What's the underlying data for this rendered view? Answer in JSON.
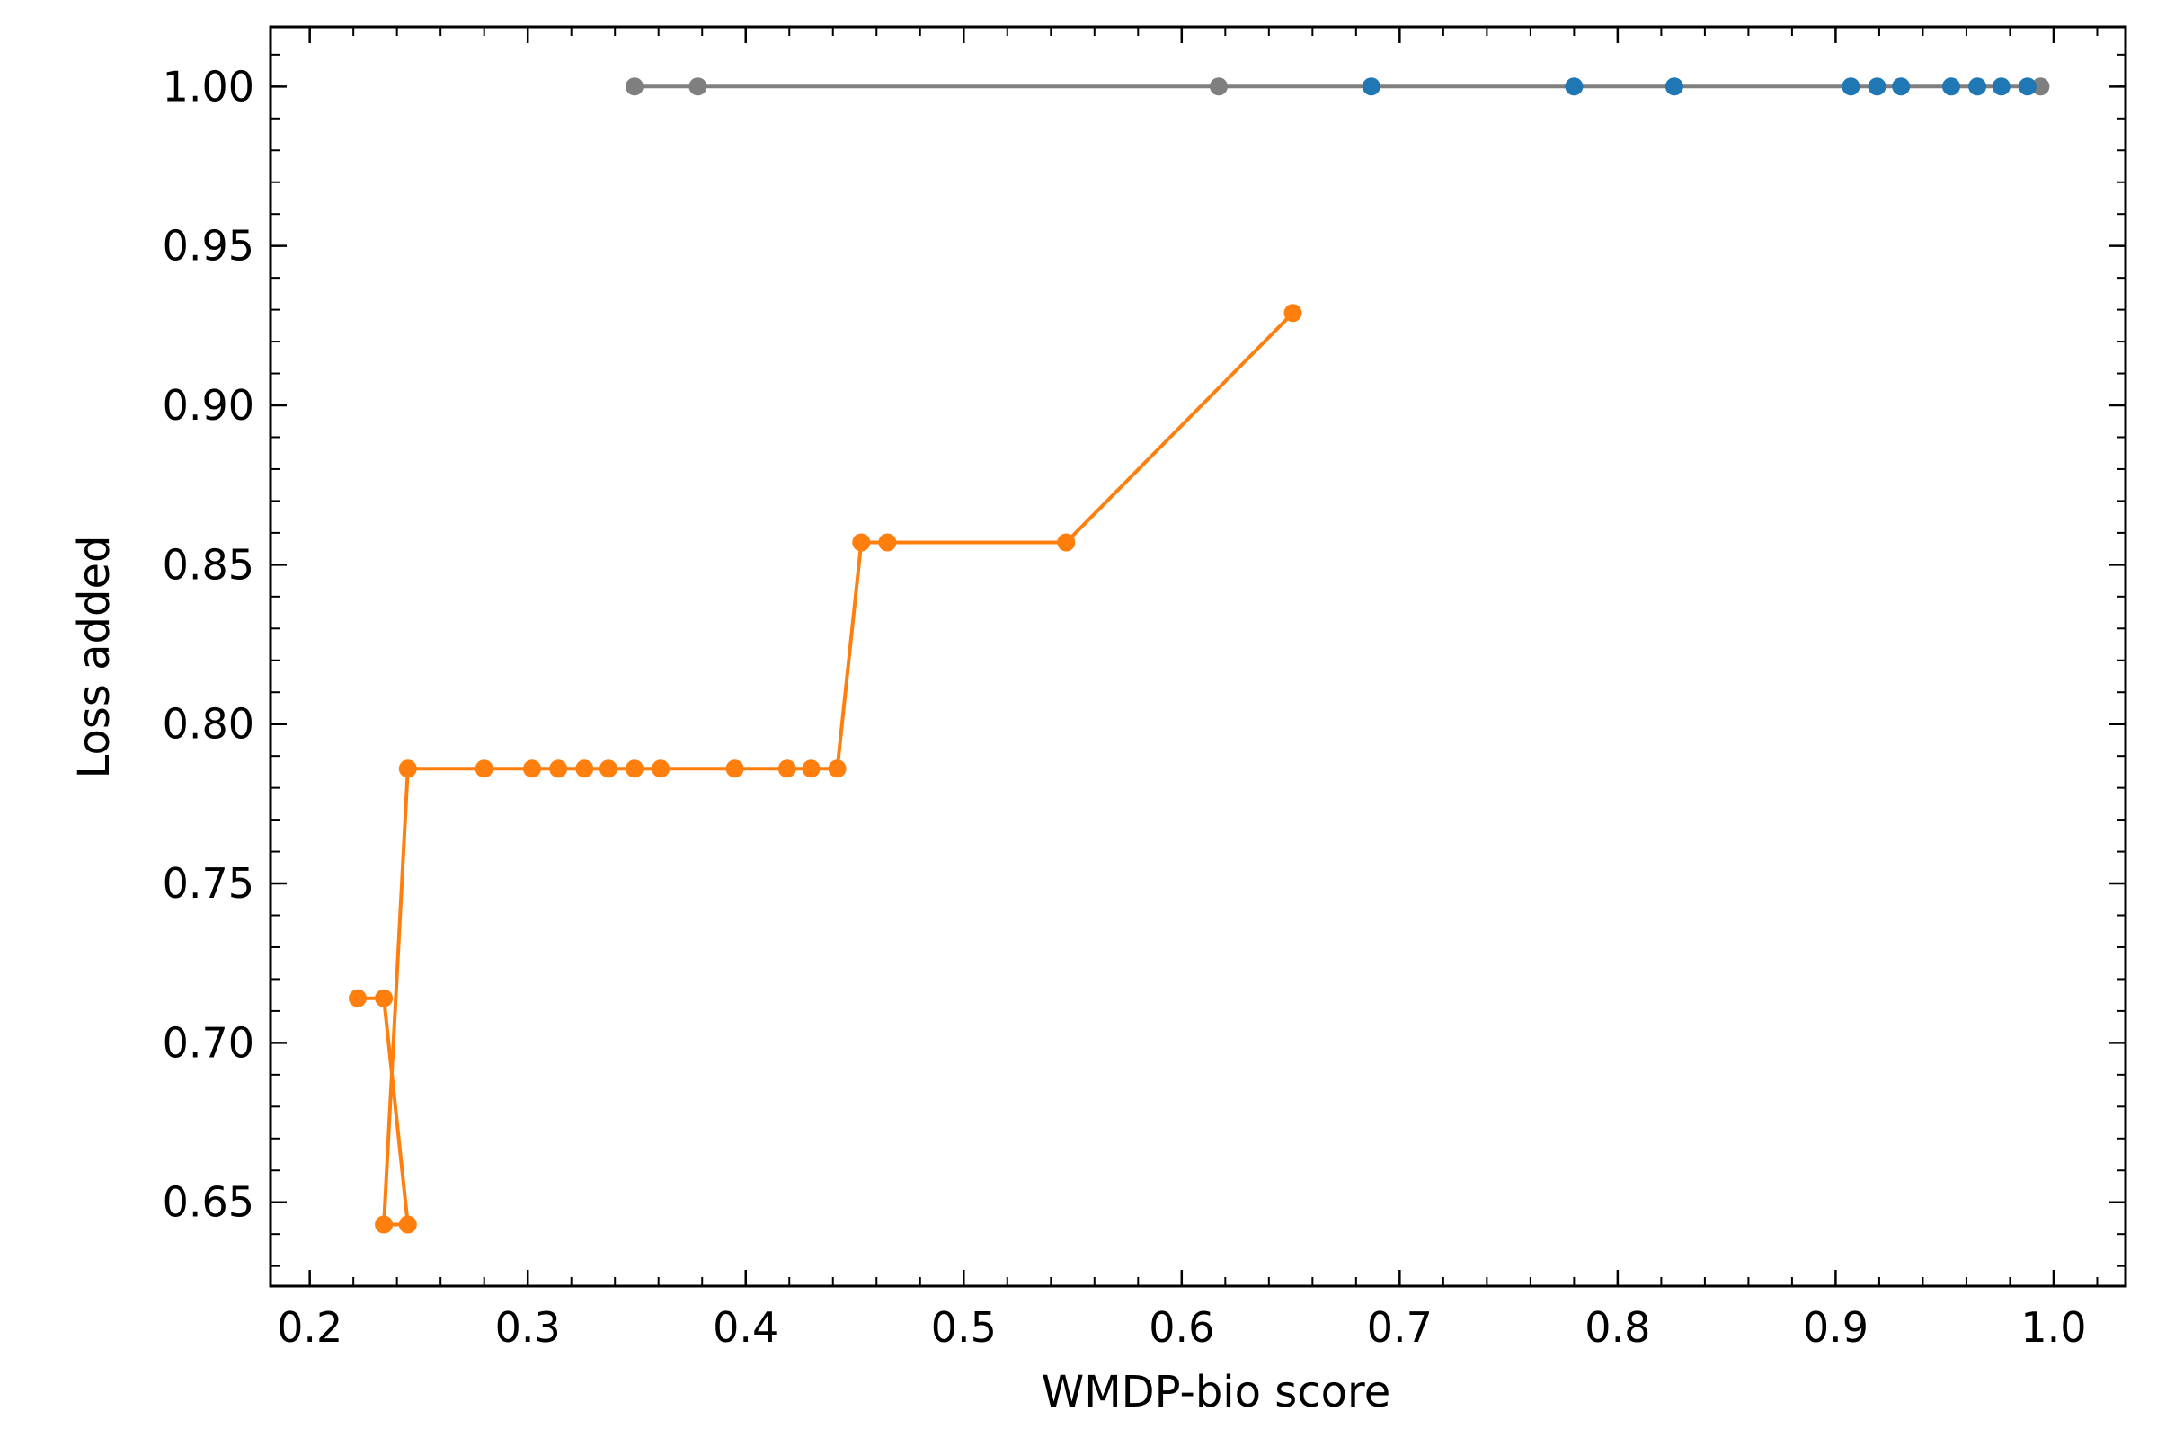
{
  "chart_data": {
    "type": "line",
    "title": "",
    "xlabel": "WMDP-bio score",
    "ylabel": "Loss added",
    "xlim": [
      0.182,
      1.033
    ],
    "ylim": [
      0.6237,
      1.0187
    ],
    "x_ticks": [
      "0.2",
      "0.3",
      "0.4",
      "0.5",
      "0.6",
      "0.7",
      "0.8",
      "0.9",
      "1.0"
    ],
    "y_ticks": [
      "0.65",
      "0.70",
      "0.75",
      "0.80",
      "0.85",
      "0.90",
      "0.95",
      "1.00"
    ],
    "grid": false,
    "legend": "none",
    "series": [
      {
        "color": "#7f7f7f",
        "mode": "line+markers",
        "points": [
          [
            0.349,
            1.0
          ],
          [
            0.378,
            1.0
          ],
          [
            0.617,
            1.0
          ],
          [
            0.994,
            1.0
          ]
        ]
      },
      {
        "color": "#1f77b4",
        "mode": "markers",
        "points": [
          [
            0.687,
            1.0
          ],
          [
            0.78,
            1.0
          ],
          [
            0.826,
            1.0
          ],
          [
            0.907,
            1.0
          ],
          [
            0.919,
            1.0
          ],
          [
            0.93,
            1.0
          ],
          [
            0.953,
            1.0
          ],
          [
            0.965,
            1.0
          ],
          [
            0.976,
            1.0
          ],
          [
            0.988,
            1.0
          ]
        ]
      },
      {
        "color": "#ff7f0e",
        "mode": "line+markers",
        "points": [
          [
            0.222,
            0.714
          ],
          [
            0.234,
            0.714
          ],
          [
            0.245,
            0.643
          ],
          [
            0.234,
            0.643
          ],
          [
            0.245,
            0.786
          ],
          [
            0.28,
            0.786
          ],
          [
            0.302,
            0.786
          ],
          [
            0.314,
            0.786
          ],
          [
            0.326,
            0.786
          ],
          [
            0.337,
            0.786
          ],
          [
            0.349,
            0.786
          ],
          [
            0.361,
            0.786
          ],
          [
            0.395,
            0.786
          ],
          [
            0.419,
            0.786
          ],
          [
            0.43,
            0.786
          ],
          [
            0.442,
            0.786
          ],
          [
            0.453,
            0.857
          ],
          [
            0.465,
            0.857
          ],
          [
            0.547,
            0.857
          ],
          [
            0.651,
            0.929
          ]
        ]
      }
    ]
  }
}
